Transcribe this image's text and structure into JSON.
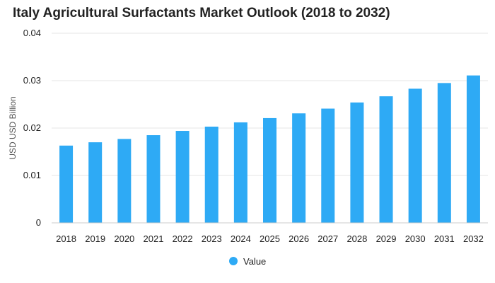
{
  "chart_data": {
    "type": "bar",
    "title": "Italy Agricultural Surfactants Market Outlook (2018 to 2032)",
    "xlabel": "",
    "ylabel": "USD USD Billion",
    "categories": [
      "2018",
      "2019",
      "2020",
      "2021",
      "2022",
      "2023",
      "2024",
      "2025",
      "2026",
      "2027",
      "2028",
      "2029",
      "2030",
      "2031",
      "2032"
    ],
    "series": [
      {
        "name": "Value",
        "color": "#2eaaf5",
        "values": [
          0.0163,
          0.017,
          0.0177,
          0.0185,
          0.0194,
          0.0203,
          0.0212,
          0.0221,
          0.0231,
          0.0241,
          0.0254,
          0.0267,
          0.0283,
          0.0295,
          0.0311
        ]
      }
    ],
    "ylim": [
      0,
      0.04
    ],
    "yticks": [
      "0",
      "0.01",
      "0.02",
      "0.03",
      "0.04"
    ],
    "grid": true,
    "legend_position": "bottom-center"
  }
}
